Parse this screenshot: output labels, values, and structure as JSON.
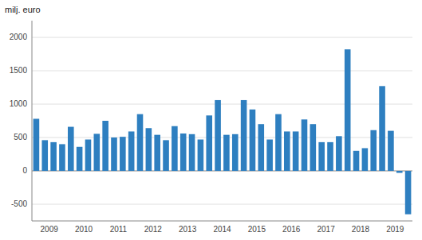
{
  "chart_data": {
    "type": "bar",
    "title": "milj. euro",
    "categories": [
      "2009",
      null,
      null,
      null,
      "2010",
      null,
      null,
      null,
      "2011",
      null,
      null,
      null,
      "2012",
      null,
      null,
      null,
      "2013",
      null,
      null,
      null,
      "2014",
      null,
      null,
      null,
      "2015",
      null,
      null,
      null,
      "2016",
      null,
      null,
      null,
      "2017",
      null,
      null,
      null,
      "2018",
      null,
      null,
      null,
      "2019",
      null,
      null,
      null
    ],
    "values": [
      780,
      460,
      430,
      400,
      660,
      360,
      470,
      555,
      750,
      500,
      510,
      590,
      850,
      640,
      540,
      460,
      670,
      560,
      550,
      470,
      830,
      1060,
      540,
      550,
      1060,
      920,
      700,
      470,
      850,
      590,
      590,
      770,
      700,
      430,
      430,
      520,
      1820,
      300,
      340,
      610,
      1270,
      600,
      -30,
      -650
    ],
    "color": "#2e7fc0",
    "ylim": [
      -750,
      2250
    ],
    "yticks": [
      -500,
      0,
      500,
      1000,
      1500,
      2000
    ],
    "grid": true
  }
}
